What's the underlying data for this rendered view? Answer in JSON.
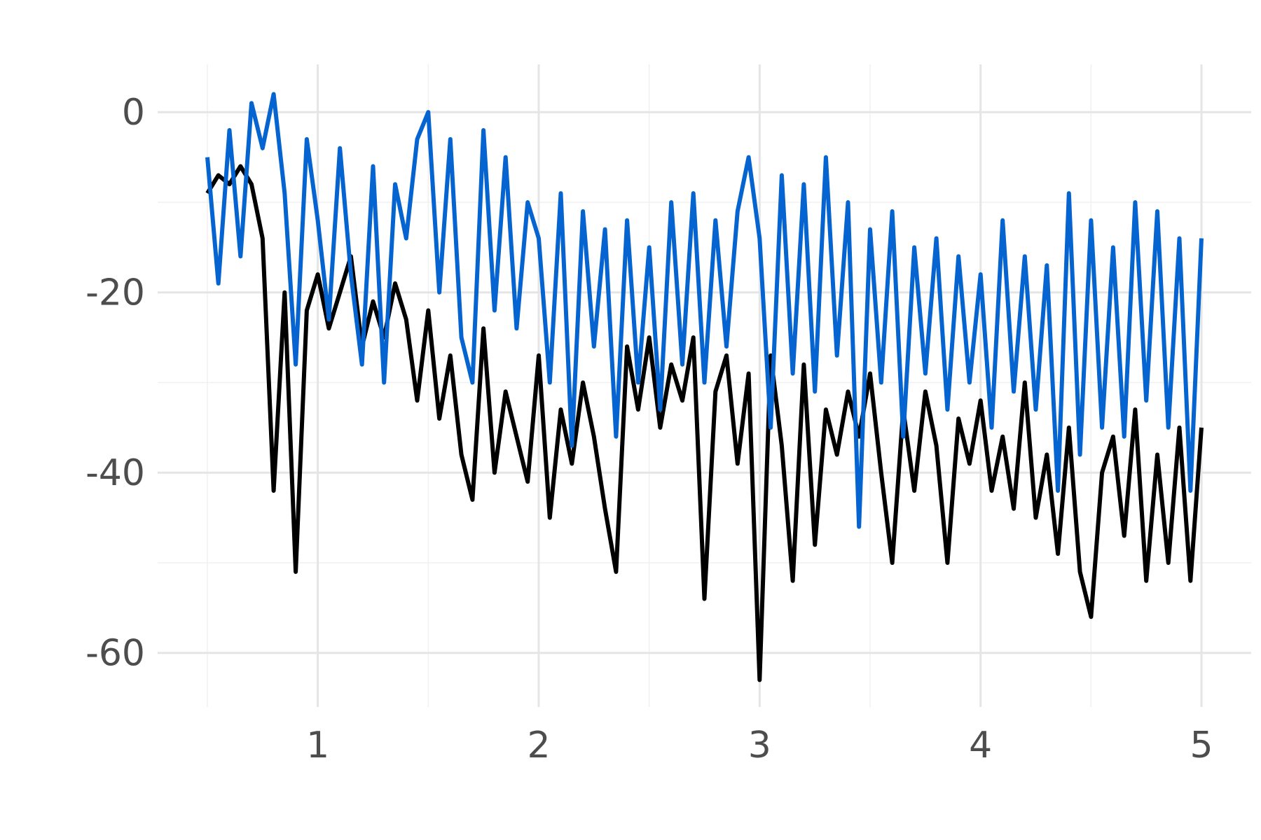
{
  "chart_data": {
    "type": "line",
    "x": [
      0.5,
      0.55,
      0.6,
      0.65,
      0.7,
      0.75,
      0.8,
      0.85,
      0.9,
      0.95,
      1.0,
      1.05,
      1.1,
      1.15,
      1.2,
      1.25,
      1.3,
      1.35,
      1.4,
      1.45,
      1.5,
      1.55,
      1.6,
      1.65,
      1.7,
      1.75,
      1.8,
      1.85,
      1.9,
      1.95,
      2.0,
      2.05,
      2.1,
      2.15,
      2.2,
      2.25,
      2.3,
      2.35,
      2.4,
      2.45,
      2.5,
      2.55,
      2.6,
      2.65,
      2.7,
      2.75,
      2.8,
      2.85,
      2.9,
      2.95,
      3.0,
      3.05,
      3.1,
      3.15,
      3.2,
      3.25,
      3.3,
      3.35,
      3.4,
      3.45,
      3.5,
      3.55,
      3.6,
      3.65,
      3.7,
      3.75,
      3.8,
      3.85,
      3.9,
      3.95,
      4.0,
      4.05,
      4.1,
      4.15,
      4.2,
      4.25,
      4.3,
      4.35,
      4.4,
      4.45,
      4.5,
      4.55,
      4.6,
      4.65,
      4.7,
      4.75,
      4.8,
      4.85,
      4.9,
      4.95,
      5.0
    ],
    "series": [
      {
        "color": "#000000",
        "values": [
          -9,
          -7,
          -8,
          -6,
          -8,
          -14,
          -42,
          -20,
          -51,
          -22,
          -18,
          -24,
          -20,
          -16,
          -26,
          -21,
          -25,
          -19,
          -23,
          -32,
          -22,
          -34,
          -27,
          -38,
          -43,
          -24,
          -40,
          -31,
          -36,
          -41,
          -27,
          -45,
          -33,
          -39,
          -30,
          -36,
          -44,
          -51,
          -26,
          -33,
          -25,
          -35,
          -28,
          -32,
          -25,
          -54,
          -31,
          -27,
          -39,
          -29,
          -63,
          -27,
          -37,
          -52,
          -28,
          -48,
          -33,
          -38,
          -31,
          -36,
          -29,
          -40,
          -50,
          -33,
          -42,
          -31,
          -37,
          -50,
          -34,
          -39,
          -32,
          -42,
          -36,
          -44,
          -30,
          -45,
          -38,
          -49,
          -35,
          -51,
          -56,
          -40,
          -36,
          -47,
          -33,
          -52,
          -38,
          -50,
          -35,
          -52,
          -35
        ]
      },
      {
        "color": "#0564cf",
        "values": [
          -5,
          -19,
          -2,
          -16,
          1,
          -4,
          2,
          -9,
          -28,
          -3,
          -12,
          -23,
          -4,
          -18,
          -28,
          -6,
          -30,
          -8,
          -14,
          -3,
          0,
          -20,
          -3,
          -25,
          -30,
          -2,
          -22,
          -5,
          -24,
          -10,
          -14,
          -30,
          -9,
          -37,
          -11,
          -26,
          -13,
          -36,
          -12,
          -30,
          -15,
          -33,
          -10,
          -28,
          -9,
          -30,
          -12,
          -26,
          -11,
          -5,
          -14,
          -35,
          -7,
          -29,
          -8,
          -31,
          -5,
          -27,
          -10,
          -46,
          -13,
          -30,
          -11,
          -36,
          -15,
          -29,
          -14,
          -33,
          -16,
          -30,
          -18,
          -35,
          -12,
          -31,
          -16,
          -33,
          -17,
          -42,
          -9,
          -38,
          -12,
          -35,
          -15,
          -36,
          -10,
          -32,
          -11,
          -35,
          -14,
          -42,
          -14
        ]
      }
    ],
    "xlim": [
      0.275,
      5.225
    ],
    "xticks": [
      1,
      2,
      3,
      4,
      5
    ],
    "xminor": [
      0.5,
      1.5,
      2.5,
      3.5,
      4.5
    ],
    "ylim": [
      -66,
      5.3
    ],
    "yticks": [
      -60,
      -40,
      -20,
      0
    ],
    "yminor": [
      -50,
      -30,
      -10
    ],
    "grid": true
  }
}
